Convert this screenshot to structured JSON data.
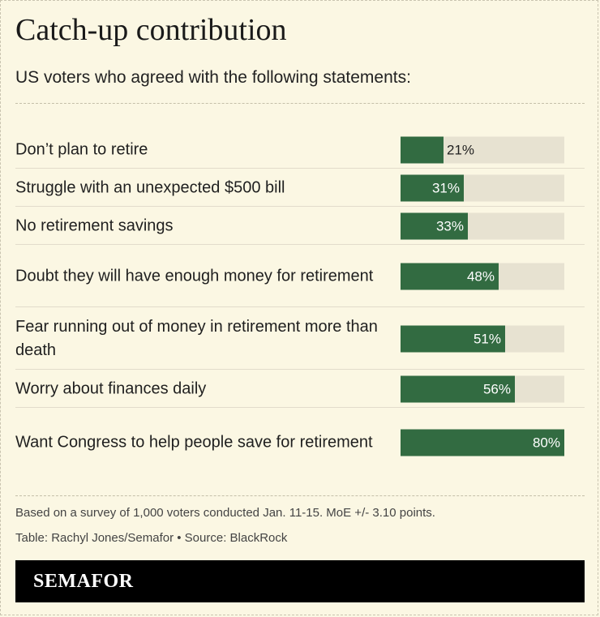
{
  "title": "Catch-up contribution",
  "subtitle": "US voters who agreed with the following statements:",
  "chart_data": {
    "type": "bar",
    "orientation": "horizontal",
    "categories": [
      "Don’t plan to retire",
      "Struggle with an unexpected $500 bill",
      "No retirement savings",
      "Doubt they will have enough money for retirement",
      "Fear running out of money in retirement more than death",
      "Worry about finances daily",
      "Want Congress to help people save for retirement"
    ],
    "values": [
      21,
      31,
      33,
      48,
      51,
      56,
      80
    ],
    "value_labels": [
      "21%",
      "31%",
      "33%",
      "48%",
      "51%",
      "56%",
      "80%"
    ],
    "xlim": [
      0,
      80
    ],
    "unit": "%",
    "grid": false,
    "legend": "none"
  },
  "notes": {
    "methodology": "Based on a survey of 1,000 voters conducted Jan. 11-15. MoE +/- 3.10 points.",
    "credit": "Table: Rachyl Jones/Semafor • Source: BlackRock"
  },
  "logo": {
    "text": "SEMAFOR"
  },
  "colors": {
    "background": "#fbf7e3",
    "bar": "#326b41",
    "track": "#e7e2d1",
    "footer": "#000000"
  }
}
